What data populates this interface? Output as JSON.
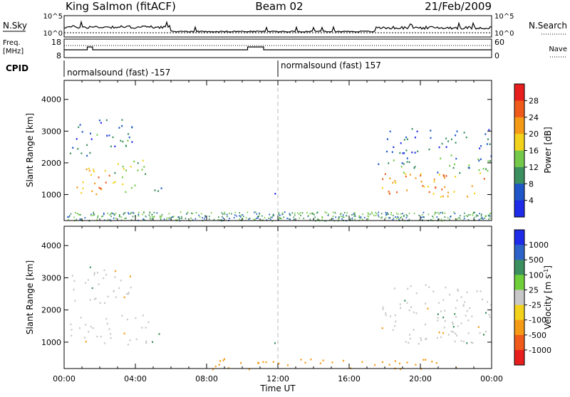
{
  "header": {
    "station": "King Salmon (fitACF)",
    "beam": "Beam 02",
    "date": "21/Feb/2009"
  },
  "top_panels": {
    "nsky_label": "N.Sky",
    "freq_label_line1": "Freq.",
    "freq_label_line2": "[MHz]",
    "cpid_label": "CPID",
    "nsearch_label": "N.Search",
    "nave_label": "Nave",
    "noise_ticks_left": [
      "10^5",
      "10^0"
    ],
    "noise_ticks_right": [
      "10^5",
      "10^0"
    ],
    "freq_ticks": [
      "18",
      "8"
    ],
    "nave_ticks": [
      "60",
      "0"
    ],
    "cpid_segments": [
      "normalsound (fast) -157",
      "normalsound (fast) 157"
    ]
  },
  "chart_data": [
    {
      "type": "heatmap",
      "name": "power",
      "ylabel": "Slant Range [km]",
      "xlabel": "",
      "yticks": [
        "1000",
        "2000",
        "3000",
        "4000"
      ],
      "ylim": [
        180,
        4600
      ],
      "xlim": [
        0,
        24
      ],
      "colorbar": {
        "label": "Power [dB]",
        "ticks": [
          "4",
          "8",
          "12",
          "16",
          "20",
          "24",
          "28"
        ],
        "colors": [
          "#1e2be8",
          "#1f56c8",
          "#3c8f5e",
          "#74c94a",
          "#f2d21a",
          "#f59a16",
          "#f05a1a",
          "#e81e1e"
        ]
      },
      "regions": [
        {
          "t0": 0.3,
          "t1": 2.8,
          "r0": 950,
          "r1": 1900,
          "level": 20
        },
        {
          "t0": 2.8,
          "t1": 4.8,
          "r0": 1100,
          "r1": 2100,
          "level": 12
        },
        {
          "t0": 4.8,
          "t1": 5.7,
          "r0": 950,
          "r1": 1350,
          "level": 8
        },
        {
          "t0": 0.3,
          "t1": 3.8,
          "r0": 2200,
          "r1": 3400,
          "level": 6
        },
        {
          "t0": 11.6,
          "t1": 11.9,
          "r0": 950,
          "r1": 1100,
          "level": 6
        },
        {
          "t0": 17.8,
          "t1": 24.0,
          "r0": 950,
          "r1": 1700,
          "level": 20
        },
        {
          "t0": 17.6,
          "t1": 24.0,
          "r0": 1700,
          "r1": 2300,
          "level": 8
        },
        {
          "t0": 18.0,
          "t1": 24.0,
          "r0": 2300,
          "r1": 3100,
          "level": 5
        }
      ]
    },
    {
      "type": "heatmap",
      "name": "velocity",
      "ylabel": "Slant Range [km]",
      "xlabel": "Time UT",
      "yticks": [
        "1000",
        "2000",
        "3000",
        "4000"
      ],
      "xticks": [
        "00:00",
        "04:00",
        "08:00",
        "12:00",
        "16:00",
        "20:00",
        "00:00"
      ],
      "ylim": [
        180,
        4600
      ],
      "xlim": [
        0,
        24
      ],
      "colorbar": {
        "label": "Velocity [m s",
        "label_sup": "-1",
        "label_end": "]",
        "ticks": [
          "1000",
          "500",
          "100",
          "25",
          "-25",
          "-100",
          "-500",
          "-1000"
        ],
        "colors": [
          "#1e2be8",
          "#2d63c8",
          "#3c8f5e",
          "#6fcf3a",
          "#c8c8c8",
          "#f2d21a",
          "#f59a16",
          "#f05a1a",
          "#e81e1e"
        ]
      },
      "regions": [
        {
          "t0": 0.3,
          "t1": 4.8,
          "r0": 950,
          "r1": 1900,
          "level": 0
        },
        {
          "t0": 4.3,
          "t1": 5.5,
          "r0": 1000,
          "r1": 1350,
          "level": 100
        },
        {
          "t0": 0.3,
          "t1": 3.8,
          "r0": 2200,
          "r1": 3400,
          "level": 0
        },
        {
          "t0": 11.6,
          "t1": 11.9,
          "r0": 950,
          "r1": 1100,
          "level": 100
        },
        {
          "t0": 8.0,
          "t1": 22.0,
          "r0": 180,
          "r1": 500,
          "level": -100
        },
        {
          "t0": 17.8,
          "t1": 24.0,
          "r0": 950,
          "r1": 2800,
          "level": 0
        }
      ]
    }
  ],
  "colors": {
    "marker_line": "#bbbbbb",
    "axis": "#000000"
  }
}
